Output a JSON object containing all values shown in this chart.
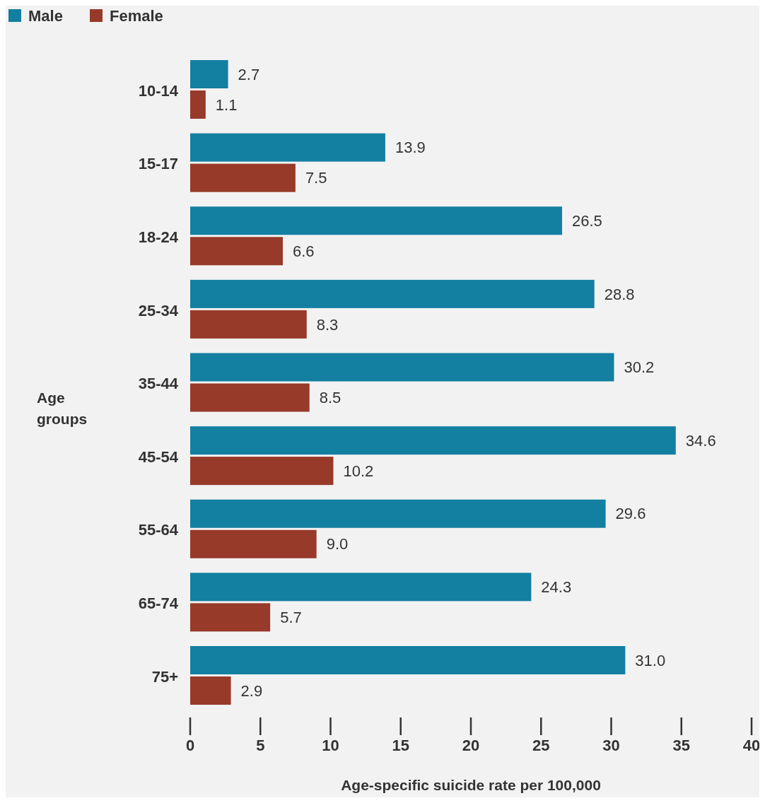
{
  "chart_data": {
    "type": "bar",
    "orientation": "horizontal",
    "xlabel": "Age-specific suicide rate per 100,000",
    "ylabel": "Age groups",
    "categories": [
      "10-14",
      "15-17",
      "18-24",
      "25-34",
      "35-44",
      "45-54",
      "55-64",
      "65-74",
      "75+"
    ],
    "series": [
      {
        "name": "Male",
        "color": "#137fa1",
        "values": [
          2.7,
          13.9,
          26.5,
          28.8,
          30.2,
          34.6,
          29.6,
          24.3,
          31.0
        ],
        "value_labels": [
          "2.7",
          "13.9",
          "26.5",
          "28.8",
          "30.2",
          "34.6",
          "29.6",
          "24.3",
          "31.0"
        ]
      },
      {
        "name": "Female",
        "color": "#973a29",
        "values": [
          1.1,
          7.5,
          6.6,
          8.3,
          8.5,
          10.2,
          9.0,
          5.7,
          2.9
        ],
        "value_labels": [
          "1.1",
          "7.5",
          "6.6",
          "8.3",
          "8.5",
          "10.2",
          "9.0",
          "5.7",
          "2.9"
        ]
      }
    ],
    "xlim": [
      0,
      40
    ],
    "xticks": [
      0,
      5,
      10,
      15,
      20,
      25,
      30,
      35,
      40
    ],
    "legend": "top left",
    "grid": false
  }
}
